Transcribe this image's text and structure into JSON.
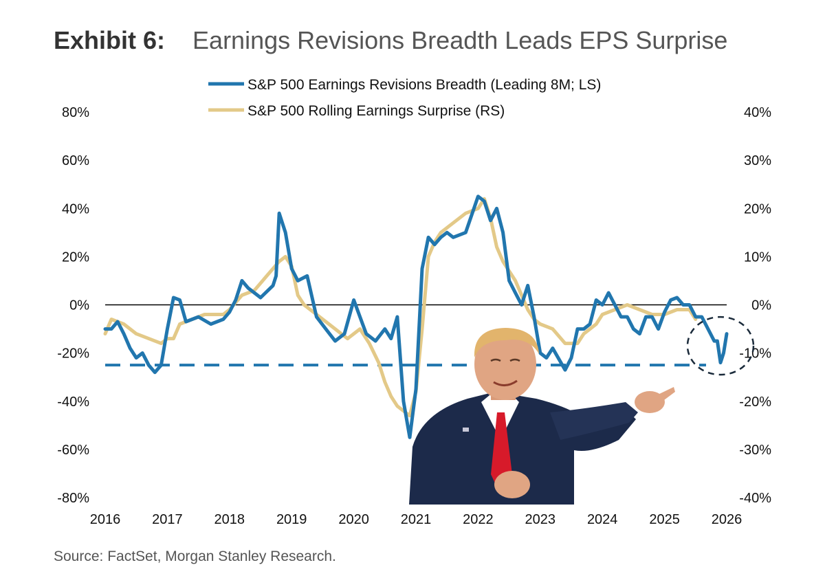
{
  "title": {
    "label": "Exhibit 6:",
    "text": "Earnings Revisions Breadth Leads EPS Surprise"
  },
  "source": "Source: FactSet, Morgan Stanley Research.",
  "colors": {
    "breadth": "#2176ae",
    "surprise": "#e3c988",
    "zero": "#000000",
    "threshold": "#2176ae",
    "circle": "#1a2a3a"
  },
  "overlay_image": "person-pointing-photo",
  "chart_data": {
    "type": "line",
    "title": "Earnings Revisions Breadth Leads EPS Surprise",
    "legend": [
      "S&P 500 Earnings Revisions Breadth (Leading 8M; LS)",
      "S&P 500 Rolling Earnings Surprise (RS)"
    ],
    "legend_position": "top-center",
    "grid": false,
    "x_ticks": [
      "2016",
      "2017",
      "2018",
      "2019",
      "2020",
      "2021",
      "2022",
      "2023",
      "2024",
      "2025",
      "2026"
    ],
    "x_range": [
      2016,
      2026
    ],
    "y_left_ticks": [
      "80%",
      "60%",
      "40%",
      "20%",
      "0%",
      "-20%",
      "-40%",
      "-60%",
      "-80%"
    ],
    "y_left_range": [
      -80,
      80
    ],
    "y_right_ticks": [
      "40%",
      "30%",
      "20%",
      "10%",
      "0%",
      "-10%",
      "-20%",
      "-30%",
      "-40%"
    ],
    "y_right_range": [
      -40,
      40
    ],
    "reference_lines": [
      {
        "axis": "left",
        "value": 0,
        "style": "solid"
      },
      {
        "axis": "left",
        "value": -25,
        "style": "dashed"
      }
    ],
    "series": [
      {
        "name": "S&P 500 Earnings Revisions Breadth (Leading 8M; LS)",
        "axis": "left",
        "x": [
          2016.0,
          2016.1,
          2016.2,
          2016.3,
          2016.4,
          2016.5,
          2016.6,
          2016.7,
          2016.8,
          2016.9,
          2017.0,
          2017.1,
          2017.2,
          2017.3,
          2017.5,
          2017.7,
          2017.9,
          2018.0,
          2018.1,
          2018.2,
          2018.3,
          2018.5,
          2018.7,
          2018.75,
          2018.8,
          2018.9,
          2019.0,
          2019.1,
          2019.25,
          2019.4,
          2019.55,
          2019.7,
          2019.85,
          2020.0,
          2020.1,
          2020.2,
          2020.35,
          2020.5,
          2020.6,
          2020.7,
          2020.8,
          2020.9,
          2021.0,
          2021.05,
          2021.1,
          2021.2,
          2021.3,
          2021.4,
          2021.5,
          2021.6,
          2021.8,
          2022.0,
          2022.1,
          2022.2,
          2022.3,
          2022.4,
          2022.5,
          2022.6,
          2022.7,
          2022.8,
          2022.9,
          2023.0,
          2023.1,
          2023.2,
          2023.4,
          2023.5,
          2023.6,
          2023.7,
          2023.8,
          2023.9,
          2024.0,
          2024.1,
          2024.2,
          2024.3,
          2024.4,
          2024.5,
          2024.6,
          2024.7,
          2024.8,
          2024.9,
          2025.0,
          2025.1,
          2025.2,
          2025.3,
          2025.4,
          2025.5,
          2025.6,
          2025.7,
          2025.8,
          2025.85,
          2025.9,
          2025.95,
          2026.0
        ],
        "values": [
          -10,
          -10,
          -7,
          -12,
          -18,
          -22,
          -20,
          -25,
          -28,
          -25,
          -10,
          3,
          2,
          -7,
          -5,
          -8,
          -6,
          -3,
          2,
          10,
          7,
          3,
          8,
          12,
          38,
          30,
          15,
          10,
          12,
          -5,
          -10,
          -15,
          -12,
          2,
          -5,
          -12,
          -15,
          -10,
          -14,
          -5,
          -40,
          -55,
          -35,
          -10,
          15,
          28,
          25,
          28,
          30,
          28,
          30,
          45,
          43,
          35,
          40,
          30,
          10,
          5,
          0,
          8,
          -5,
          -20,
          -22,
          -18,
          -27,
          -22,
          -10,
          -10,
          -8,
          2,
          0,
          5,
          0,
          -5,
          -5,
          -10,
          -12,
          -5,
          -5,
          -10,
          -3,
          2,
          3,
          0,
          0,
          -5,
          -5,
          -10,
          -15,
          -15,
          -24,
          -20,
          -12
        ]
      },
      {
        "name": "S&P 500 Rolling Earnings Surprise (RS)",
        "axis": "right",
        "x": [
          2016.0,
          2016.1,
          2016.3,
          2016.5,
          2016.7,
          2016.9,
          2017.0,
          2017.1,
          2017.2,
          2017.4,
          2017.6,
          2017.8,
          2017.9,
          2018.0,
          2018.2,
          2018.4,
          2018.6,
          2018.8,
          2018.9,
          2019.0,
          2019.1,
          2019.2,
          2019.4,
          2019.6,
          2019.8,
          2019.9,
          2020.0,
          2020.1,
          2020.25,
          2020.4,
          2020.5,
          2020.6,
          2020.7,
          2020.8,
          2020.9,
          2021.0,
          2021.1,
          2021.2,
          2021.3,
          2021.4,
          2021.6,
          2021.8,
          2022.0,
          2022.1,
          2022.2,
          2022.3,
          2022.4,
          2022.5,
          2022.6,
          2022.7,
          2022.8,
          2022.9,
          2023.0,
          2023.2,
          2023.4,
          2023.6,
          2023.7,
          2023.8,
          2023.9,
          2024.0,
          2024.2,
          2024.4,
          2024.6,
          2024.8,
          2025.0,
          2025.2,
          2025.4,
          2025.5
        ],
        "values": [
          -6,
          -3,
          -4,
          -6,
          -7,
          -8,
          -7,
          -7,
          -4,
          -3,
          -2,
          -2,
          -2,
          -1,
          2,
          3,
          6,
          9,
          10,
          8,
          2,
          0,
          -2,
          -4,
          -6,
          -7,
          -6,
          -5,
          -8,
          -12,
          -16,
          -19,
          -21,
          -22,
          -23,
          -18,
          -5,
          10,
          13,
          15,
          17,
          19,
          20,
          22,
          18,
          12,
          9,
          7,
          5,
          2,
          -1,
          -3,
          -4,
          -5,
          -8,
          -8,
          -6,
          -5,
          -4,
          -2,
          -1,
          0,
          -1,
          -2,
          -2,
          -1,
          -1,
          -3
        ]
      }
    ]
  }
}
